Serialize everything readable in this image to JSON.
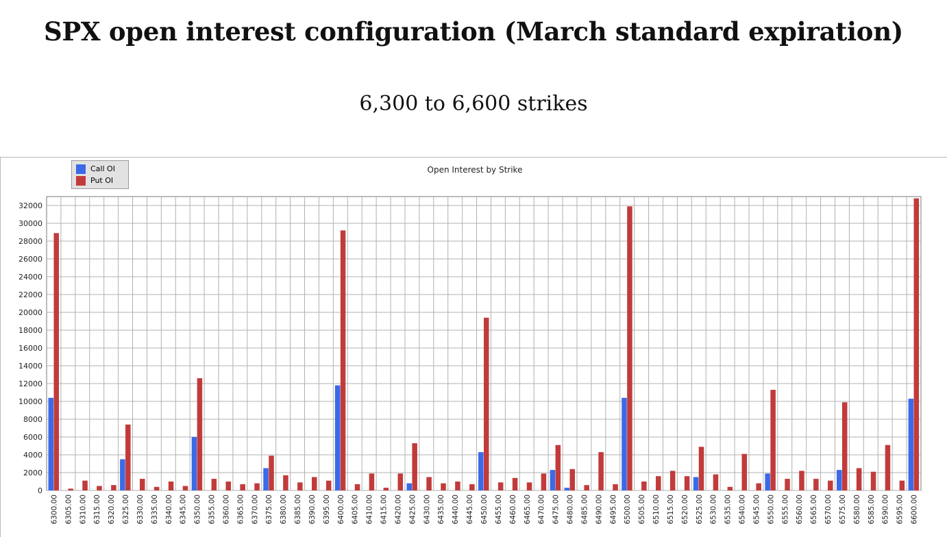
{
  "header": {
    "title": "SPX open interest configuration (March standard expiration)",
    "subtitle": "6,300 to 6,600 strikes"
  },
  "colors": {
    "call": "#3b6ae8",
    "put": "#c23b3b"
  },
  "chart_data": {
    "type": "bar",
    "title": "Open Interest by Strike",
    "xlabel": "",
    "ylabel": "",
    "ylim": [
      0,
      33000
    ],
    "yticks": [
      0,
      2000,
      4000,
      6000,
      8000,
      10000,
      12000,
      14000,
      16000,
      18000,
      20000,
      22000,
      24000,
      26000,
      28000,
      30000,
      32000
    ],
    "grid": true,
    "legend_position": "top-left",
    "categories": [
      "6300.00",
      "6305.00",
      "6310.00",
      "6315.00",
      "6320.00",
      "6325.00",
      "6330.00",
      "6335.00",
      "6340.00",
      "6345.00",
      "6350.00",
      "6355.00",
      "6360.00",
      "6365.00",
      "6370.00",
      "6375.00",
      "6380.00",
      "6385.00",
      "6390.00",
      "6395.00",
      "6400.00",
      "6405.00",
      "6410.00",
      "6415.00",
      "6420.00",
      "6425.00",
      "6430.00",
      "6435.00",
      "6440.00",
      "6445.00",
      "6450.00",
      "6455.00",
      "6460.00",
      "6465.00",
      "6470.00",
      "6475.00",
      "6480.00",
      "6485.00",
      "6490.00",
      "6495.00",
      "6500.00",
      "6505.00",
      "6510.00",
      "6515.00",
      "6520.00",
      "6525.00",
      "6530.00",
      "6535.00",
      "6540.00",
      "6545.00",
      "6550.00",
      "6555.00",
      "6560.00",
      "6565.00",
      "6570.00",
      "6575.00",
      "6580.00",
      "6585.00",
      "6590.00",
      "6595.00",
      "6600.00"
    ],
    "series": [
      {
        "name": "Call OI",
        "values": [
          10400,
          0,
          0,
          0,
          0,
          3500,
          0,
          0,
          0,
          0,
          6000,
          0,
          0,
          0,
          0,
          2500,
          0,
          0,
          0,
          0,
          11800,
          0,
          0,
          0,
          0,
          800,
          0,
          0,
          0,
          0,
          4300,
          0,
          0,
          0,
          0,
          2300,
          300,
          0,
          0,
          0,
          10400,
          0,
          0,
          0,
          0,
          1500,
          0,
          0,
          0,
          0,
          1900,
          0,
          0,
          0,
          0,
          2300,
          0,
          0,
          0,
          0,
          10300
        ]
      },
      {
        "name": "Put OI",
        "values": [
          28900,
          200,
          1100,
          500,
          600,
          7400,
          1300,
          400,
          1000,
          500,
          12600,
          1300,
          1000,
          700,
          800,
          3900,
          1700,
          900,
          1500,
          1100,
          29200,
          700,
          1900,
          300,
          1900,
          5300,
          1500,
          800,
          1000,
          700,
          19400,
          900,
          1400,
          900,
          1900,
          5100,
          2400,
          600,
          4300,
          700,
          31900,
          1000,
          1600,
          2200,
          1600,
          4900,
          1800,
          400,
          4100,
          800,
          11300,
          1300,
          2200,
          1300,
          1100,
          9900,
          2500,
          2100,
          5100,
          1100,
          32800
        ]
      }
    ]
  }
}
